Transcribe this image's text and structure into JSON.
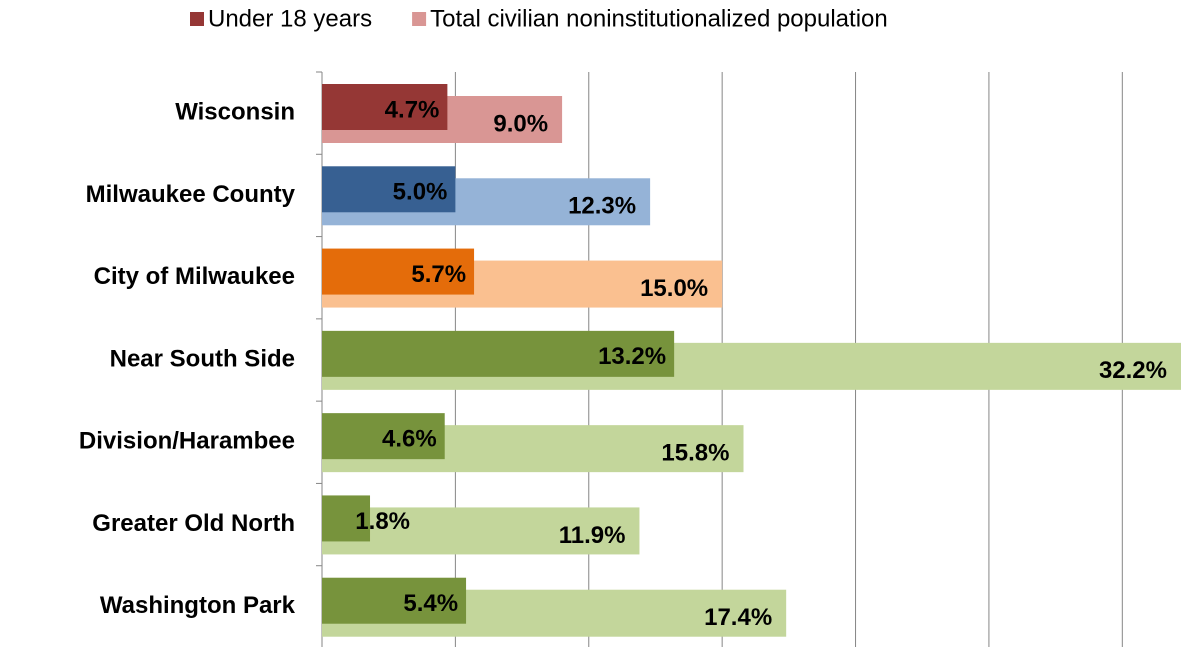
{
  "chart_data": {
    "type": "bar",
    "orientation": "horizontal",
    "categories": [
      "Wisconsin",
      "Milwaukee County",
      "City of Milwaukee",
      "Near South Side",
      "Division/Harambee",
      "Greater Old North",
      "Washington Park"
    ],
    "series": [
      {
        "name": "Under 18 years",
        "color": "#953735",
        "colors": [
          "#953735",
          "#376092",
          "#e46c0a",
          "#77933c",
          "#77933c",
          "#77933c",
          "#77933c"
        ],
        "values": [
          4.7,
          5.0,
          5.7,
          13.2,
          4.6,
          1.8,
          5.4
        ],
        "value_labels": [
          "4.7%",
          "5.0%",
          "5.7%",
          "13.2%",
          "4.6%",
          "1.8%",
          "5.4%"
        ]
      },
      {
        "name": "Total civilian noninstitutionalized population",
        "color": "#d99694",
        "colors": [
          "#d99694",
          "#95b3d7",
          "#fac090",
          "#c3d69b",
          "#c3d69b",
          "#c3d69b",
          "#c3d69b"
        ],
        "values": [
          9.0,
          12.3,
          15.0,
          32.2,
          15.8,
          11.9,
          17.4
        ],
        "value_labels": [
          "9.0%",
          "12.3%",
          "15.0%",
          "32.2%",
          "15.8%",
          "11.9%",
          "17.4%"
        ]
      }
    ],
    "xlim": [
      0,
      32.2
    ],
    "xticks": [
      0,
      5,
      10,
      15,
      20,
      25,
      30
    ],
    "grid": true,
    "legend": "top"
  }
}
